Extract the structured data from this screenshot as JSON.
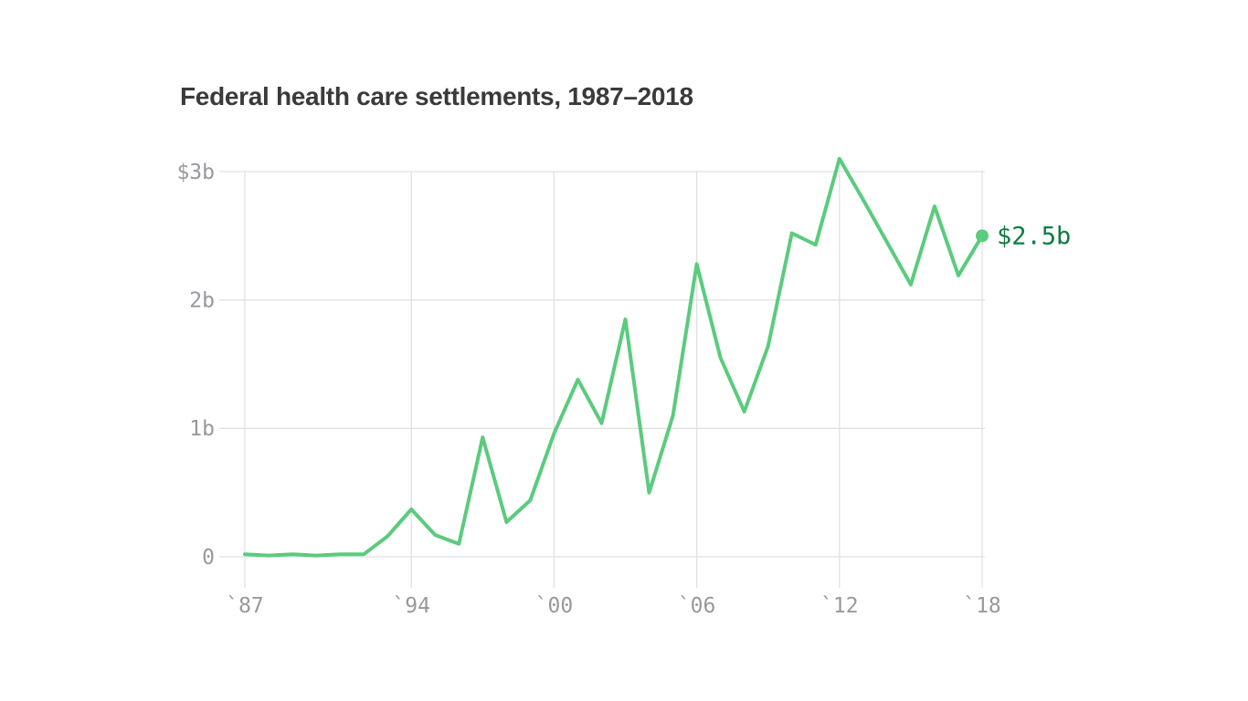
{
  "title": "Federal health care settlements, 1987–2018",
  "chart_data": {
    "type": "line",
    "title": "Federal health care settlements, 1987–2018",
    "series_name": "Federal health care settlements",
    "unit": "billions of dollars",
    "x": [
      1987,
      1988,
      1989,
      1990,
      1991,
      1992,
      1993,
      1994,
      1995,
      1996,
      1997,
      1998,
      1999,
      2000,
      2001,
      2002,
      2003,
      2004,
      2005,
      2006,
      2007,
      2008,
      2009,
      2010,
      2011,
      2012,
      2013,
      2014,
      2015,
      2016,
      2017,
      2018
    ],
    "values": [
      0.02,
      0.01,
      0.02,
      0.01,
      0.02,
      0.02,
      0.16,
      0.37,
      0.17,
      0.1,
      0.93,
      0.27,
      0.44,
      0.96,
      1.38,
      1.04,
      1.85,
      0.5,
      1.1,
      2.28,
      1.55,
      1.13,
      1.64,
      2.52,
      2.43,
      3.1,
      2.78,
      2.45,
      2.12,
      2.73,
      2.19,
      2.5
    ],
    "xlim": [
      1987,
      2018
    ],
    "ylim": [
      0,
      3
    ],
    "grid": true,
    "legend_position": "none",
    "y_ticks": [
      {
        "value": 0,
        "label": "0"
      },
      {
        "value": 1,
        "label": "1b"
      },
      {
        "value": 2,
        "label": "2b"
      },
      {
        "value": 3,
        "label": "$3b"
      }
    ],
    "x_ticks": [
      {
        "value": 1987,
        "label": "`87"
      },
      {
        "value": 1994,
        "label": "`94"
      },
      {
        "value": 2000,
        "label": "`00"
      },
      {
        "value": 2006,
        "label": "`06"
      },
      {
        "value": 2012,
        "label": "`12"
      },
      {
        "value": 2018,
        "label": "`18"
      }
    ],
    "end_annotation": {
      "x": 2018,
      "y": 2.5,
      "label": "$2.5b"
    },
    "colors": {
      "line": "#5bcb7d",
      "marker": "#5bcb7d",
      "annotation_text": "#0e7b43",
      "axis_text": "#98989d",
      "grid": "#e1e1e3",
      "title_text": "#3a3a3c",
      "background": "#ffffff"
    }
  }
}
